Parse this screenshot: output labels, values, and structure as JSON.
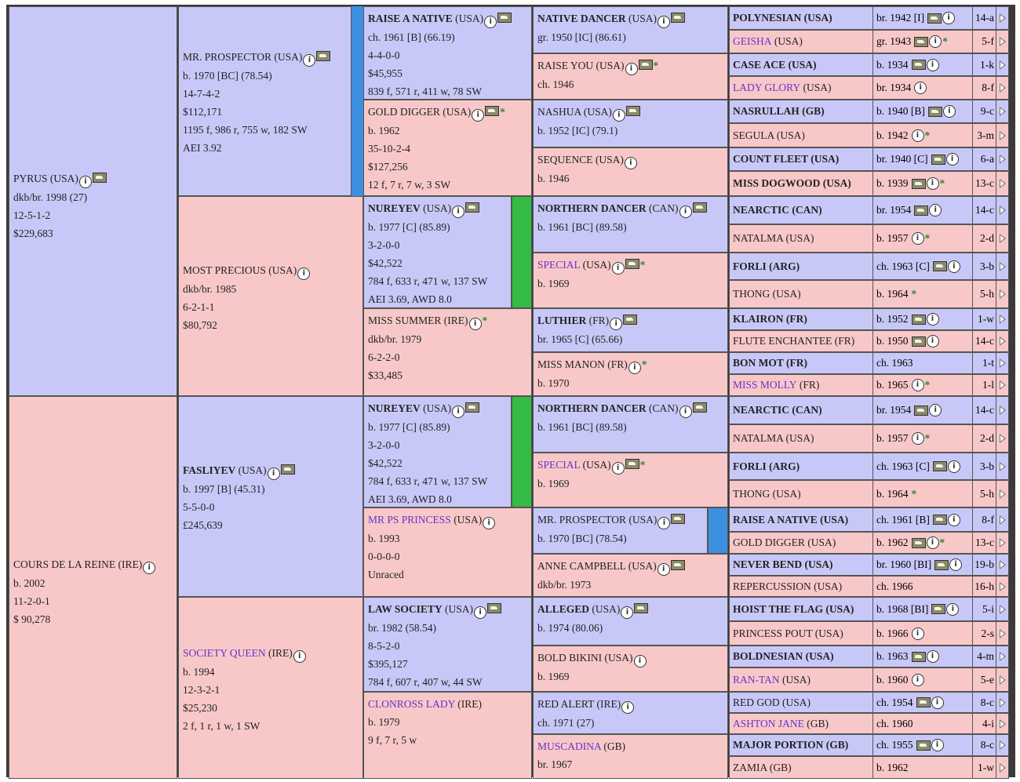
{
  "gen1": [
    {
      "name": "PYRUS",
      "country": " (USA)",
      "lines": [
        "dkb/br. 1998 (27)",
        "12-5-1-2",
        "$229,683"
      ]
    },
    {
      "name": "COURS DE LA REINE",
      "country": " (IRE)",
      "lines": [
        "b. 2002",
        "11-2-0-1",
        "$ 90,278"
      ]
    }
  ],
  "gen2": [
    {
      "name": "MR. PROSPECTOR",
      "country": " (USA)",
      "lines": [
        "b. 1970 [BC] (78.54)",
        "14-7-4-2",
        "$112,171",
        "1195 f, 986 r, 755 w, 182 SW",
        "AEI 3.92"
      ]
    },
    {
      "name": "MOST PRECIOUS",
      "country": " (USA)",
      "lines": [
        "dkb/br. 1985",
        "6-2-1-1",
        "$80,792"
      ]
    },
    {
      "name": "FASLIYEV",
      "country": " (USA)",
      "lines": [
        "b. 1997 [B] (45.31)",
        "5-5-0-0",
        "£245,639"
      ]
    },
    {
      "name": "SOCIETY QUEEN",
      "country": " (IRE)",
      "lines": [
        "b. 1994",
        "12-3-2-1",
        "$25,230",
        "2 f, 1 r, 1 w, 1 SW"
      ]
    }
  ],
  "gen3": [
    {
      "name": "RAISE A NATIVE",
      "country": " (USA)",
      "lines": [
        "ch. 1961 [B] (66.19)",
        "4-4-0-0",
        "$45,955",
        "839 f, 571 r, 411 w, 78 SW"
      ]
    },
    {
      "name": "GOLD DIGGER",
      "country": " (USA)",
      "lines": [
        "b. 1962",
        "35-10-2-4",
        "$127,256",
        "12 f, 7 r, 7 w, 3 SW"
      ]
    },
    {
      "name": "NUREYEV",
      "country": " (USA)",
      "lines": [
        "b. 1977 [C] (85.89)",
        "3-2-0-0",
        "$42,522",
        "784 f, 633 r, 471 w, 137 SW",
        "AEI 3.69, AWD 8.0"
      ]
    },
    {
      "name": "MISS SUMMER",
      "country": " (IRE)",
      "lines": [
        "dkb/br. 1979",
        "6-2-2-0",
        "$33,485"
      ]
    },
    {
      "name": "NUREYEV",
      "country": " (USA)",
      "lines": [
        "b. 1977 [C] (85.89)",
        "3-2-0-0",
        "$42,522",
        "784 f, 633 r, 471 w, 137 SW",
        "AEI 3.69, AWD 8.0"
      ]
    },
    {
      "name": "MR PS PRINCESS",
      "country": " (USA)",
      "lines": [
        "b. 1993",
        "0-0-0-0",
        "Unraced"
      ]
    },
    {
      "name": "LAW SOCIETY",
      "country": " (USA)",
      "lines": [
        "br. 1982 (58.54)",
        "8-5-2-0",
        "$395,127",
        "784 f, 607 r, 407 w, 44 SW"
      ]
    },
    {
      "name": "CLONROSS LADY",
      "country": " (IRE)",
      "lines": [
        "b. 1979",
        "9 f, 7 r, 5 w"
      ]
    }
  ],
  "gen4": [
    {
      "name": "NATIVE DANCER",
      "country": " (USA)",
      "lines": [
        "gr. 1950 [IC] (86.61)"
      ]
    },
    {
      "name": "RAISE YOU",
      "country": " (USA)",
      "lines": [
        "ch. 1946"
      ]
    },
    {
      "name": "NASHUA",
      "country": " (USA)",
      "lines": [
        "b. 1952 [IC] (79.1)"
      ]
    },
    {
      "name": "SEQUENCE",
      "country": " (USA)",
      "lines": [
        "b. 1946"
      ]
    },
    {
      "name": "NORTHERN DANCER",
      "country": " (CAN)",
      "lines": [
        "b. 1961 [BC] (89.58)"
      ]
    },
    {
      "name": "SPECIAL",
      "country": " (USA)",
      "lines": [
        "b. 1969"
      ]
    },
    {
      "name": "LUTHIER",
      "country": " (FR)",
      "lines": [
        "br. 1965 [C] (65.66)"
      ]
    },
    {
      "name": "MISS MANON",
      "country": " (FR)",
      "lines": [
        "b. 1970"
      ]
    },
    {
      "name": "NORTHERN DANCER",
      "country": " (CAN)",
      "lines": [
        "b. 1961 [BC] (89.58)"
      ]
    },
    {
      "name": "SPECIAL",
      "country": " (USA)",
      "lines": [
        "b. 1969"
      ]
    },
    {
      "name": "MR. PROSPECTOR",
      "country": " (USA)",
      "lines": [
        "b. 1970 [BC] (78.54)"
      ]
    },
    {
      "name": "ANNE CAMPBELL",
      "country": " (USA)",
      "lines": [
        "dkb/br. 1973"
      ]
    },
    {
      "name": "ALLEGED",
      "country": " (USA)",
      "lines": [
        "b. 1974 (80.06)"
      ]
    },
    {
      "name": "BOLD BIKINI",
      "country": " (USA)",
      "lines": [
        "b. 1969"
      ]
    },
    {
      "name": "RED ALERT",
      "country": " (IRE)",
      "lines": [
        "ch. 1971 (27)"
      ]
    },
    {
      "name": "MUSCADINA",
      "country": " (GB)",
      "lines": [
        "br. 1967"
      ]
    }
  ],
  "gen5": [
    {
      "name": "POLYNESIAN (USA)",
      "birth": "br. 1942 [I]",
      "family": "14-a"
    },
    {
      "name": "GEISHA",
      "country": " (USA)",
      "birth": "gr. 1943",
      "family": "5-f"
    },
    {
      "name": "CASE ACE (USA)",
      "birth": "b. 1934",
      "family": "1-k"
    },
    {
      "name": "LADY GLORY",
      "country": " (USA)",
      "birth": "br. 1934",
      "family": "8-f"
    },
    {
      "name": "NASRULLAH (GB)",
      "birth": "b. 1940 [B]",
      "family": "9-c"
    },
    {
      "name": "SEGULA (USA)",
      "birth": "b. 1942",
      "family": "3-m"
    },
    {
      "name": "COUNT FLEET (USA)",
      "birth": "br. 1940 [C]",
      "family": "6-a"
    },
    {
      "name": "MISS DOGWOOD (USA)",
      "birth": "b. 1939",
      "family": "13-c"
    },
    {
      "name": "NEARCTIC (CAN)",
      "birth": "br. 1954",
      "family": "14-c"
    },
    {
      "name": "NATALMA (USA)",
      "birth": "b. 1957",
      "family": "2-d"
    },
    {
      "name": "FORLI (ARG)",
      "birth": "ch. 1963 [C]",
      "family": "3-b"
    },
    {
      "name": "THONG (USA)",
      "birth": "b. 1964",
      "family": "5-h"
    },
    {
      "name": "KLAIRON (FR)",
      "birth": "b. 1952",
      "family": "1-w"
    },
    {
      "name": "FLUTE ENCHANTEE (FR)",
      "birth": "b. 1950",
      "family": "14-c"
    },
    {
      "name": "BON MOT (FR)",
      "birth": "ch. 1963",
      "family": "1-t"
    },
    {
      "name": "MISS MOLLY",
      "country": " (FR)",
      "birth": "b. 1965",
      "family": "1-l"
    },
    {
      "name": "NEARCTIC (CAN)",
      "birth": "br. 1954",
      "family": "14-c"
    },
    {
      "name": "NATALMA (USA)",
      "birth": "b. 1957",
      "family": "2-d"
    },
    {
      "name": "FORLI (ARG)",
      "birth": "ch. 1963 [C]",
      "family": "3-b"
    },
    {
      "name": "THONG (USA)",
      "birth": "b. 1964",
      "family": "5-h"
    },
    {
      "name": "RAISE A NATIVE (USA)",
      "birth": "ch. 1961 [B]",
      "family": "8-f"
    },
    {
      "name": "GOLD DIGGER (USA)",
      "birth": "b. 1962",
      "family": "13-c"
    },
    {
      "name": "NEVER BEND (USA)",
      "birth": "br. 1960 [BI]",
      "family": "19-b"
    },
    {
      "name": "REPERCUSSION (USA)",
      "birth": "ch. 1966",
      "family": "16-h"
    },
    {
      "name": "HOIST THE FLAG (USA)",
      "birth": "b. 1968 [BI]",
      "family": "5-i"
    },
    {
      "name": "PRINCESS POUT (USA)",
      "birth": "b. 1966",
      "family": "2-s"
    },
    {
      "name": "BOLDNESIAN (USA)",
      "birth": "b. 1963",
      "family": "4-m"
    },
    {
      "name": "RAN-TAN",
      "country": " (USA)",
      "birth": "b. 1960",
      "family": "5-e"
    },
    {
      "name": "RED GOD (USA)",
      "birth": "ch. 1954",
      "family": "8-c"
    },
    {
      "name": "ASHTON JANE",
      "country": " (GB)",
      "birth": "ch. 1960",
      "family": "4-i"
    },
    {
      "name": "MAJOR PORTION (GB)",
      "birth": "ch. 1955",
      "family": "8-c"
    },
    {
      "name": "ZAMIA (GB)",
      "birth": "b. 1962",
      "family": "1-w"
    }
  ],
  "colors": {
    "male": "#c8c8f8",
    "female": "#f8c8c8",
    "link": "#6633cc",
    "dup_blue": "#3d8fe0",
    "dup_green": "#33bb44",
    "star": "#2a8a2a"
  }
}
